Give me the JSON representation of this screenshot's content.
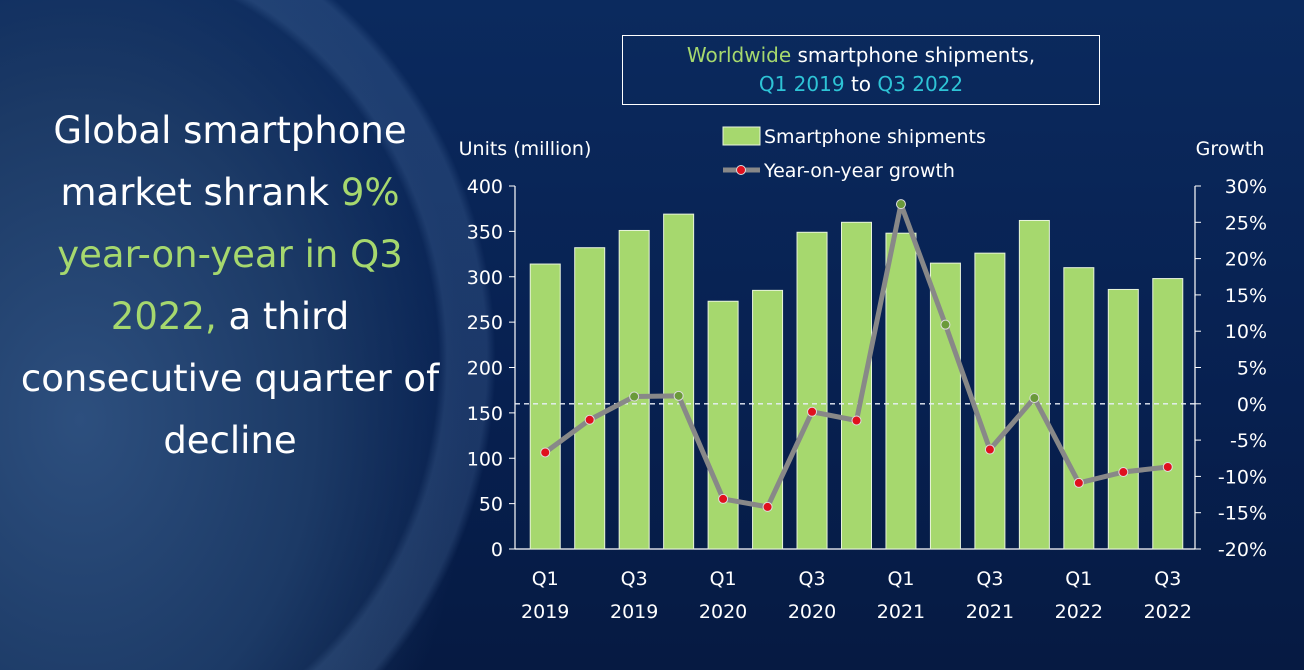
{
  "headline": {
    "line1": "Global smartphone market shrank",
    "highlight": "9% year-on-year in Q3 2022,",
    "rest": "a third consecutive quarter of decline"
  },
  "title": {
    "part1": "Worldwide",
    "part2": " smartphone shipments,",
    "part3": "Q1 2019",
    "part4": " to ",
    "part5": "Q3 2022"
  },
  "chart_data": {
    "type": "bar+line",
    "categories": [
      "Q1 2019",
      "Q2 2019",
      "Q3 2019",
      "Q4 2019",
      "Q1 2020",
      "Q2 2020",
      "Q3 2020",
      "Q4 2020",
      "Q1 2021",
      "Q2 2021",
      "Q3 2021",
      "Q4 2021",
      "Q1 2022",
      "Q2 2022",
      "Q3 2022"
    ],
    "x_tick_labels": [
      [
        "Q1",
        "2019"
      ],
      [
        "Q3",
        "2019"
      ],
      [
        "Q1",
        "2020"
      ],
      [
        "Q3",
        "2020"
      ],
      [
        "Q1",
        "2021"
      ],
      [
        "Q3",
        "2021"
      ],
      [
        "Q1",
        "2022"
      ],
      [
        "Q3",
        "2022"
      ]
    ],
    "series": [
      {
        "name": "Smartphone shipments",
        "type": "bar",
        "axis": "left",
        "color": "#a6d86e",
        "values": [
          314,
          332,
          351,
          369,
          273,
          285,
          349,
          360,
          348,
          315,
          326,
          362,
          310,
          286,
          298
        ]
      },
      {
        "name": "Year-on-year growth",
        "type": "line",
        "axis": "right",
        "color": "#888888",
        "values": [
          -6.7,
          -2.2,
          1.0,
          1.1,
          -13.1,
          -14.2,
          -1.1,
          -2.3,
          27.5,
          10.9,
          -6.3,
          0.8,
          -10.9,
          -9.4,
          -8.7
        ]
      }
    ],
    "ylabel_left": "Units (million)",
    "ylim_left": [
      0,
      400
    ],
    "yticks_left": [
      0,
      50,
      100,
      150,
      200,
      250,
      300,
      350,
      400
    ],
    "ylabel_right": "Growth",
    "ylim_right": [
      -20,
      30
    ],
    "yticks_right": [
      "-20%",
      "-15%",
      "-10%",
      "-5%",
      "0%",
      "5%",
      "10%",
      "15%",
      "20%",
      "25%",
      "30%"
    ],
    "marker_colors": {
      "positive": "#6a9a3a",
      "negative": "#e0101e"
    },
    "legend": "top-center",
    "grid": false
  }
}
